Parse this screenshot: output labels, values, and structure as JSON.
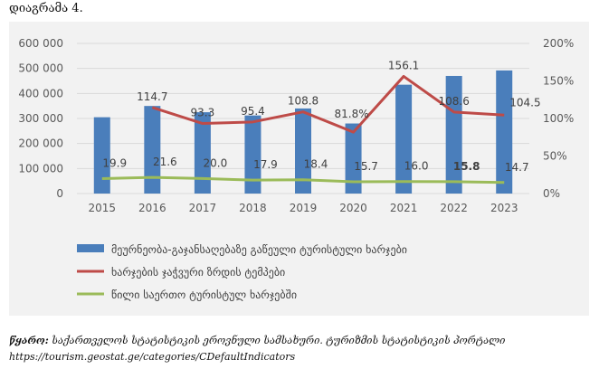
{
  "figure_label": "დიაგრამა 4.",
  "source": {
    "prefix": "წყარო:",
    "text": "საქართველოს სტატისტიკის ეროვნული სამსახური. ტურიზმის სტატისტიკის პორტალი",
    "url": "https://tourism.geostat.ge/categories/CDefaultIndicators"
  },
  "chart_data": {
    "type": "bar",
    "categories": [
      "2015",
      "2016",
      "2017",
      "2018",
      "2019",
      "2020",
      "2021",
      "2022",
      "2023"
    ],
    "left_axis": {
      "ylim": [
        0,
        600000
      ],
      "ticks": [
        "0",
        "100 000",
        "200 000",
        "300 000",
        "400 000",
        "500 000",
        "600 000"
      ],
      "tick_values": [
        0,
        100000,
        200000,
        300000,
        400000,
        500000,
        600000
      ]
    },
    "right_axis": {
      "ylim": [
        0,
        200
      ],
      "ticks": [
        "0%",
        "50%",
        "100%",
        "150%",
        "200%"
      ],
      "tick_values": [
        0,
        50,
        100,
        150,
        200
      ]
    },
    "series": [
      {
        "name": "მეურნეობა-გაჯანსაღებაზე გაწეული ტურისტული ხარჯები",
        "type": "bar",
        "axis": "left",
        "color": "#4a7ebb",
        "values": [
          305000,
          350000,
          325000,
          312000,
          340000,
          280000,
          435000,
          470000,
          492000
        ]
      },
      {
        "name": "ხარჯების ჯაჭვური ზრდის ტემპები",
        "type": "line",
        "axis": "right",
        "color": "#be4b48",
        "values": [
          null,
          114.7,
          93.3,
          95.4,
          108.8,
          81.8,
          156.1,
          108.6,
          104.5
        ],
        "labels": [
          "",
          "114.7",
          "93.3",
          "95.4",
          "108.8",
          "81.8%",
          "156.1",
          "108.6",
          "104.5"
        ]
      },
      {
        "name": "წილი საერთო ტურისტულ ხარჯებში",
        "type": "line",
        "axis": "right",
        "color": "#9bbb59",
        "values": [
          19.9,
          21.6,
          20.0,
          17.9,
          18.4,
          15.7,
          16.0,
          15.8,
          14.7
        ],
        "labels": [
          "19.9",
          "21.6",
          "20.0",
          "17.9",
          "18.4",
          "15.7",
          "16.0",
          "15.8",
          "14.7"
        ]
      }
    ]
  }
}
